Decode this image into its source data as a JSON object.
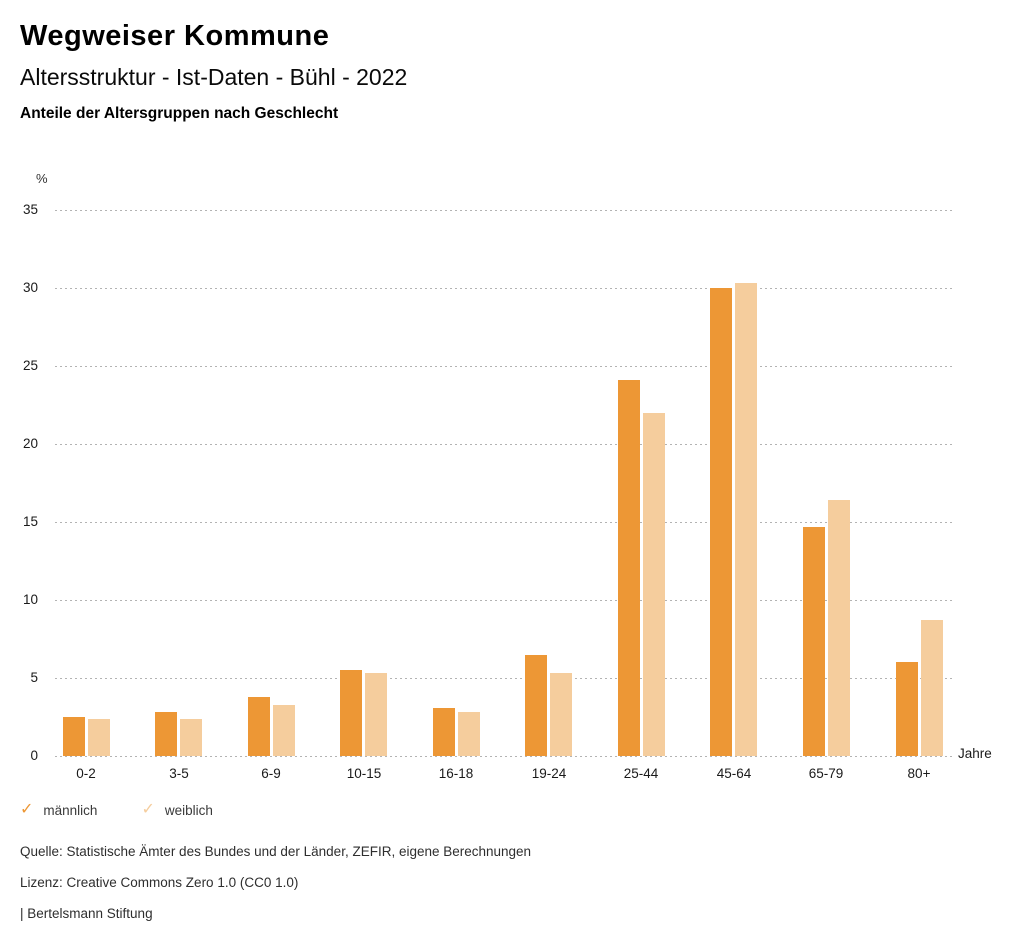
{
  "header": {
    "title": "Wegweiser Kommune",
    "subtitle": "Altersstruktur - Ist-Daten - Bühl - 2022",
    "heading": "Anteile der Altersgruppen nach Geschlecht"
  },
  "chart_data": {
    "type": "bar",
    "title": "Anteile der Altersgruppen nach Geschlecht",
    "ylabel": "%",
    "xlabel": "Jahre",
    "categories": [
      "0-2",
      "3-5",
      "6-9",
      "10-15",
      "16-18",
      "19-24",
      "25-44",
      "45-64",
      "65-79",
      "80+"
    ],
    "series": [
      {
        "name": "männlich",
        "color": "#ED9735",
        "values": [
          2.5,
          2.8,
          3.8,
          5.5,
          3.1,
          6.5,
          24.1,
          30.0,
          14.7,
          6.0
        ]
      },
      {
        "name": "weiblich",
        "color": "#F5CD9D",
        "values": [
          2.4,
          2.4,
          3.3,
          5.3,
          2.8,
          5.3,
          22.0,
          30.3,
          16.4,
          8.7
        ]
      }
    ],
    "ylim": [
      0,
      35
    ],
    "yticks": [
      0,
      5,
      10,
      15,
      20,
      25,
      30,
      35
    ],
    "grid": "horizontal-dotted",
    "legend_position": "bottom-left"
  },
  "legend": {
    "check_glyph": "✓",
    "items": [
      {
        "label": "männlich",
        "color": "#ED9735"
      },
      {
        "label": "weiblich",
        "color": "#F5CD9D"
      }
    ]
  },
  "footer": {
    "source": "Quelle: Statistische Ämter des Bundes und der Länder, ZEFIR, eigene Berechnungen",
    "license": "Lizenz: Creative Commons Zero 1.0 (CC0 1.0)",
    "brand": "| Bertelsmann Stiftung"
  }
}
